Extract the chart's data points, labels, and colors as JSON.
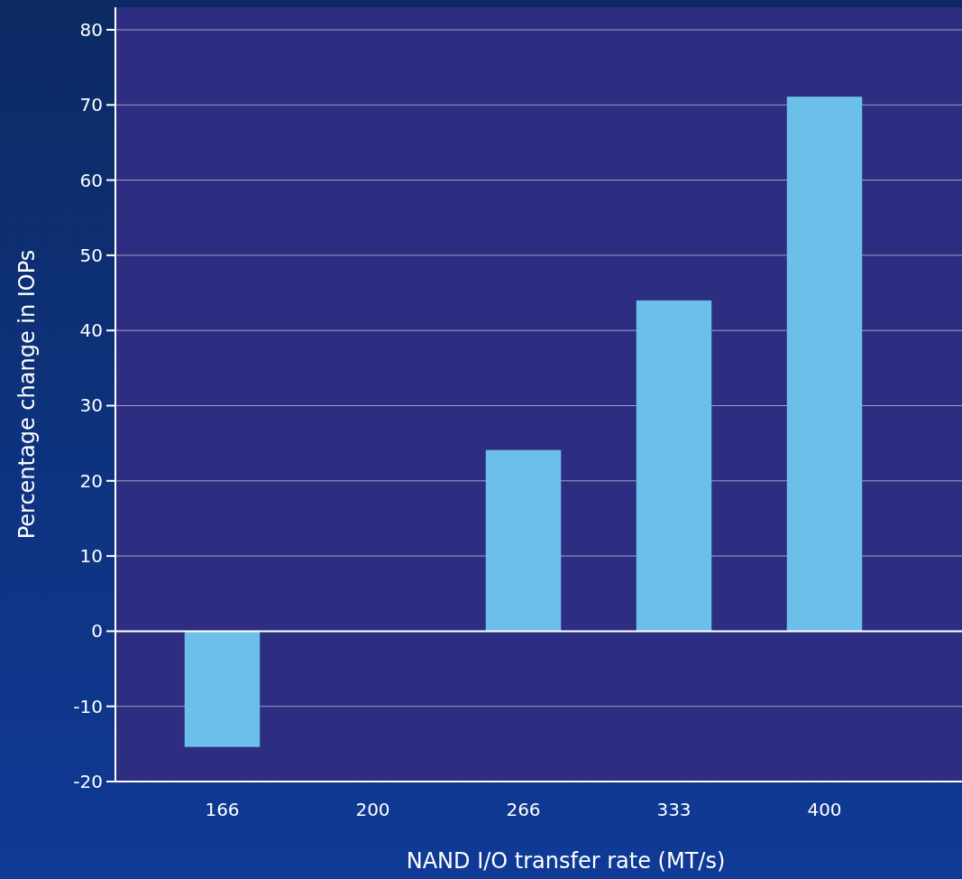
{
  "chart_data": {
    "type": "bar",
    "xlabel": "NAND I/O transfer rate (MT/s)",
    "ylabel": "Percentage change in IOPs",
    "categories": [
      "166",
      "200",
      "266",
      "333",
      "400"
    ],
    "values": [
      -15.4,
      0,
      24.1,
      44.0,
      71.1
    ],
    "color": "#6cbfe9",
    "ylim": [
      -20,
      83
    ],
    "yticks": [
      -20,
      -10,
      0,
      10,
      20,
      30,
      40,
      50,
      60,
      70,
      80
    ],
    "grid": "y"
  }
}
